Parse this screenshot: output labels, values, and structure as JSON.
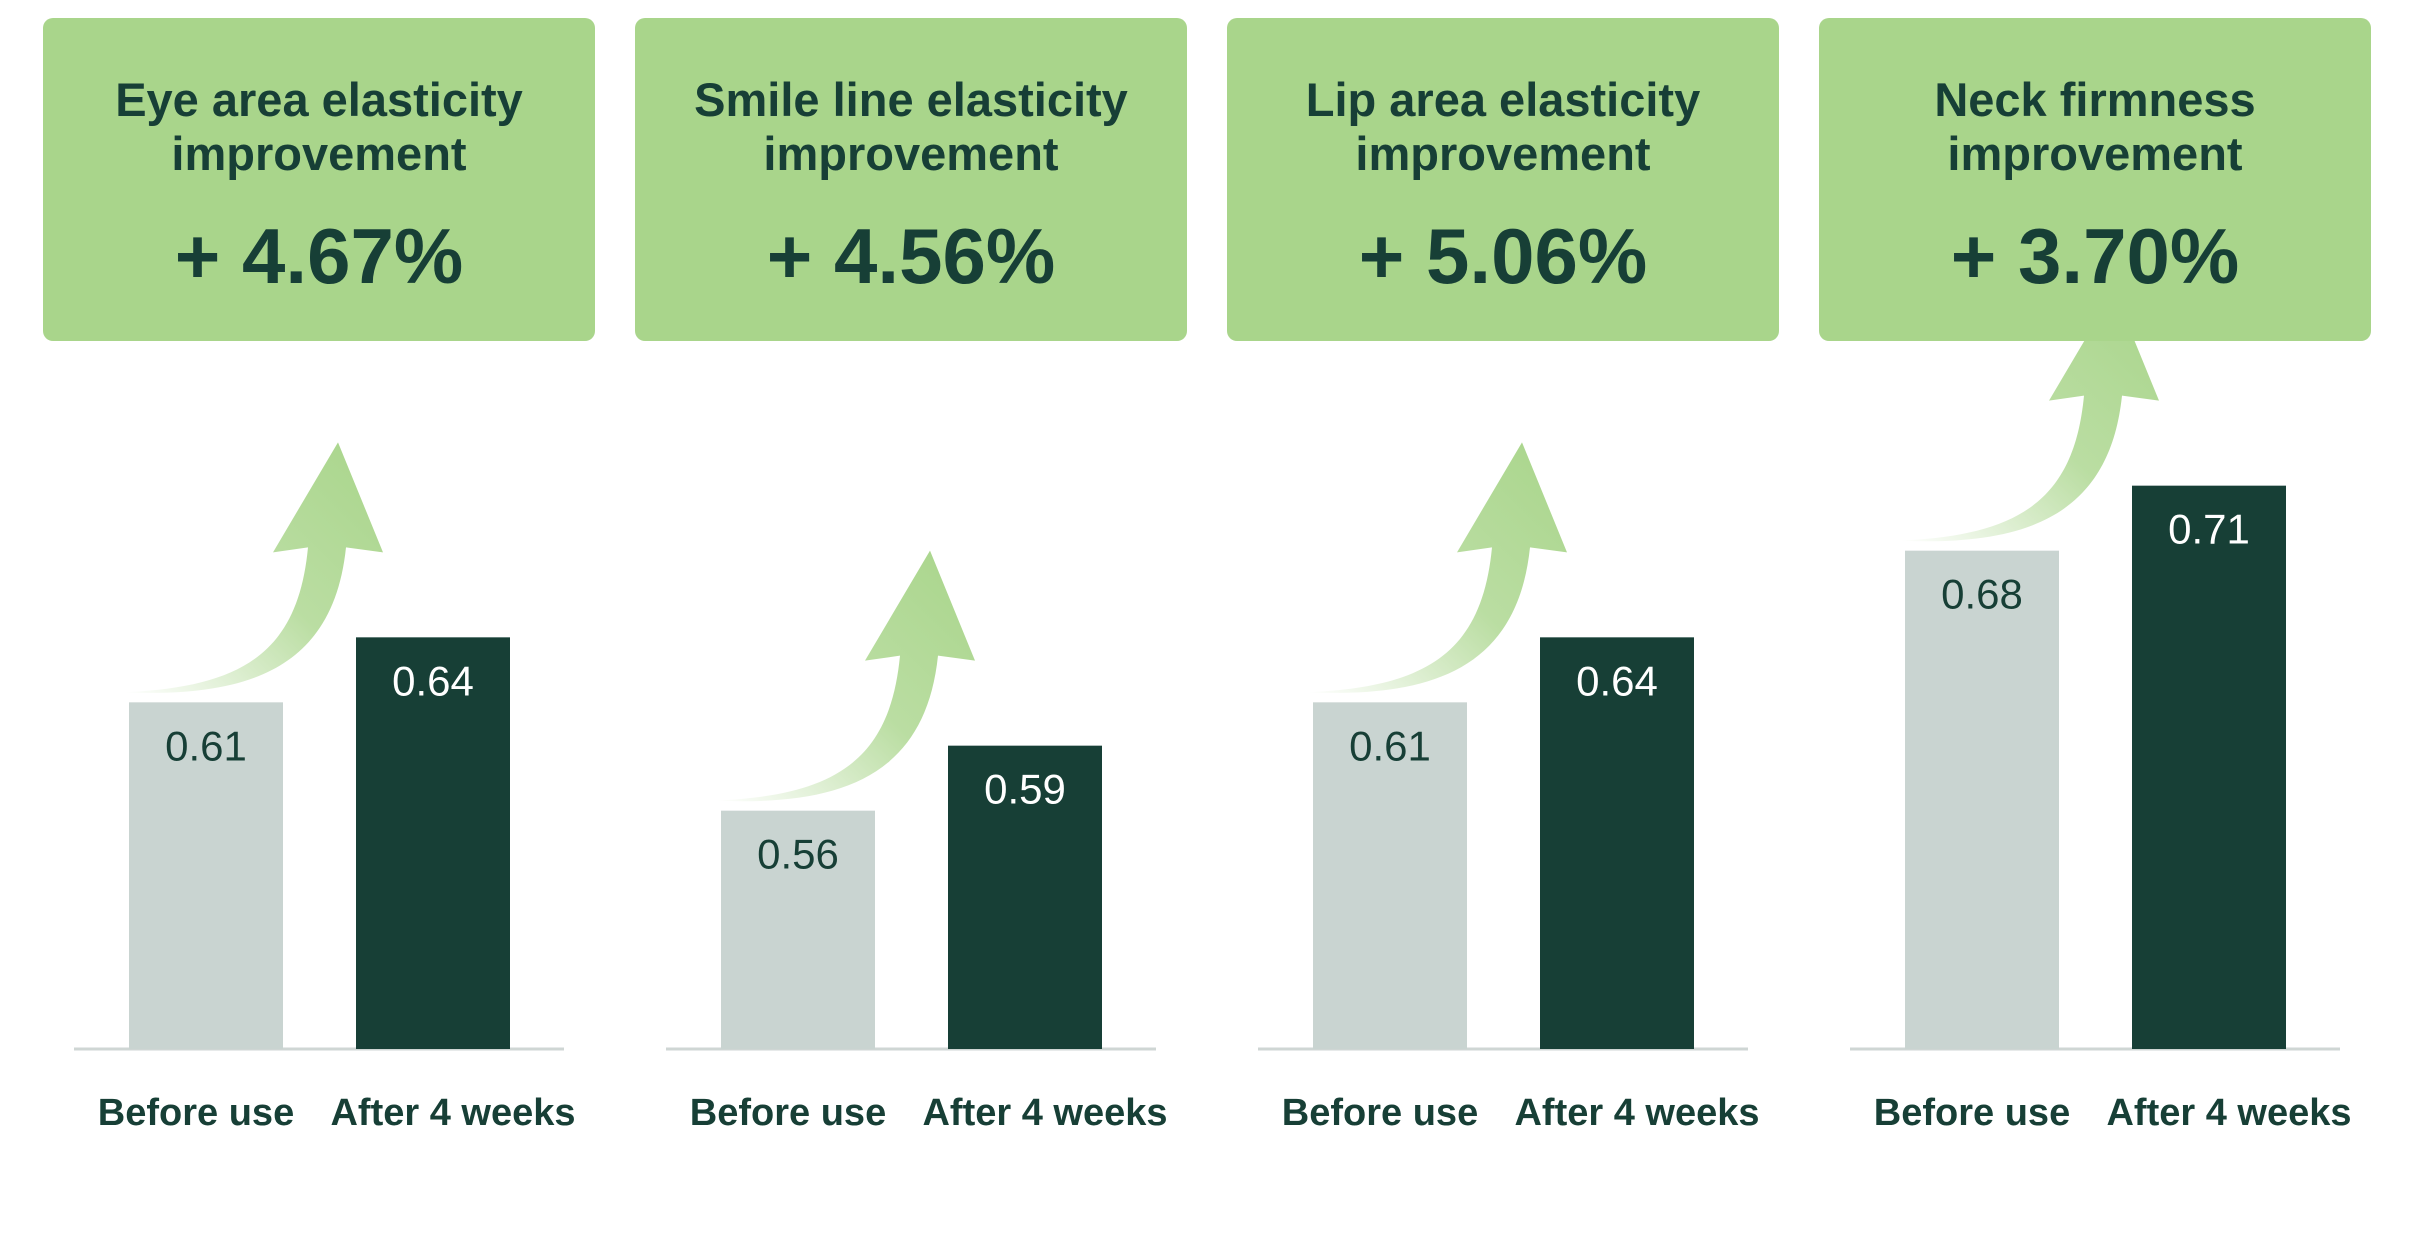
{
  "chart_data": [
    {
      "type": "bar",
      "title": "Eye area elasticity improvement",
      "headline": "+ 4.67%",
      "categories": [
        "Before use",
        "After 4 weeks"
      ],
      "values": [
        0.61,
        0.64
      ],
      "colors": [
        "#c9d4d1",
        "#173f36"
      ],
      "ylim": [
        0.45,
        0.75
      ]
    },
    {
      "type": "bar",
      "title": "Smile line elasticity improvement",
      "headline": "+ 4.56%",
      "categories": [
        "Before use",
        "After 4 weeks"
      ],
      "values": [
        0.56,
        0.59
      ],
      "colors": [
        "#c9d4d1",
        "#173f36"
      ],
      "ylim": [
        0.45,
        0.75
      ]
    },
    {
      "type": "bar",
      "title": "Lip area elasticity improvement",
      "headline": "+ 5.06%",
      "categories": [
        "Before use",
        "After 4 weeks"
      ],
      "values": [
        0.61,
        0.64
      ],
      "colors": [
        "#c9d4d1",
        "#173f36"
      ],
      "ylim": [
        0.45,
        0.75
      ]
    },
    {
      "type": "bar",
      "title": "Neck firmness improvement",
      "headline": "+ 3.70%",
      "categories": [
        "Before use",
        "After 4 weeks"
      ],
      "values": [
        0.68,
        0.71
      ],
      "colors": [
        "#c9d4d1",
        "#173f36"
      ],
      "ylim": [
        0.45,
        0.75
      ]
    }
  ]
}
